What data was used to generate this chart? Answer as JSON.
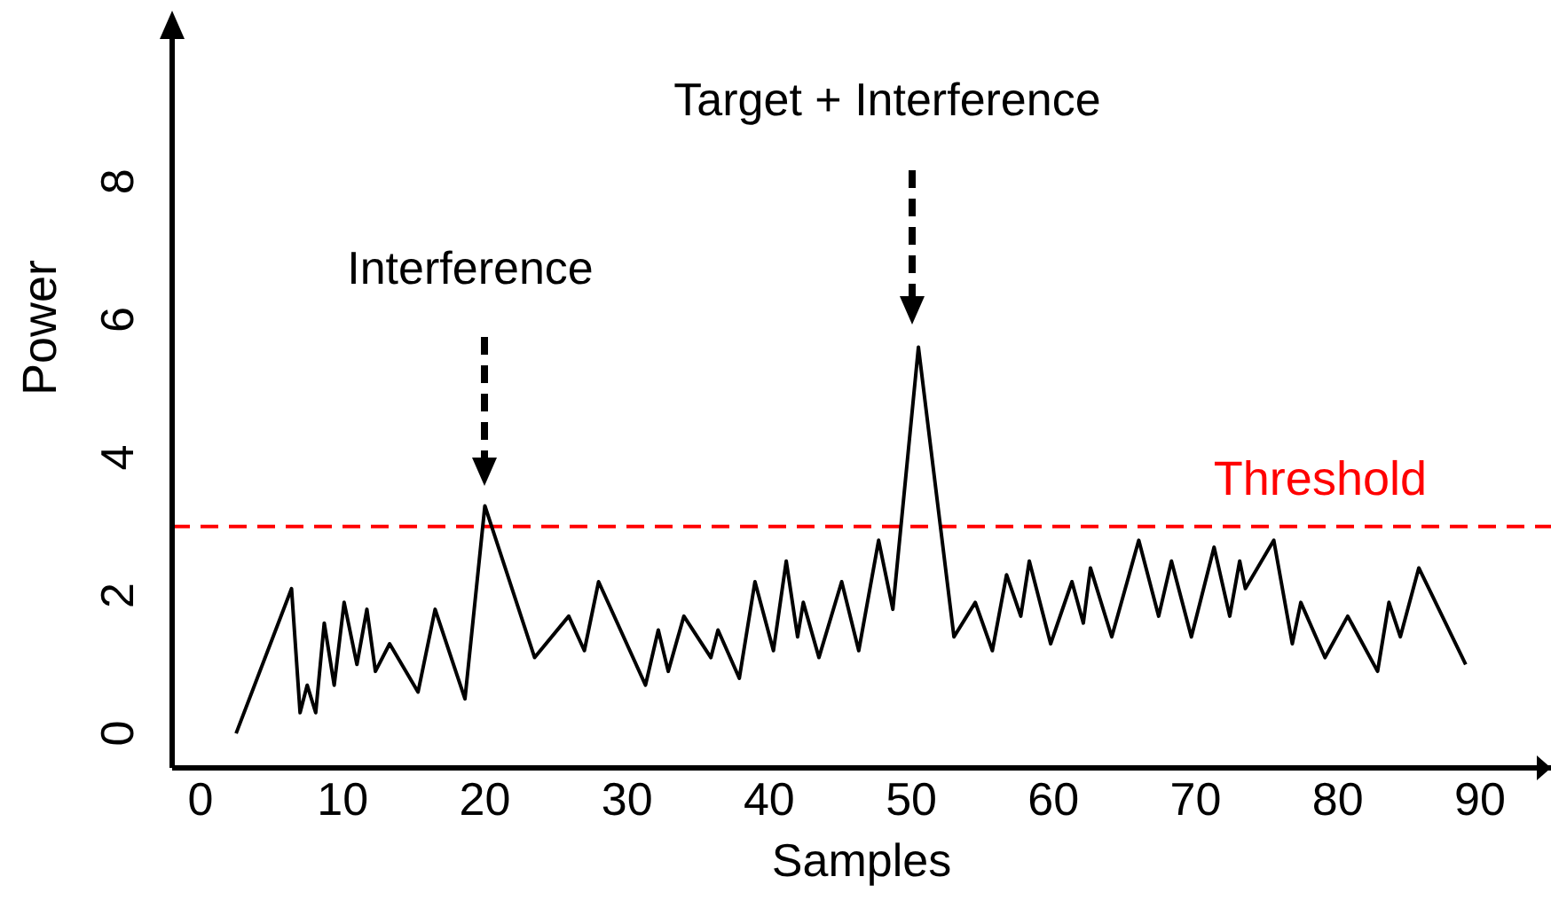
{
  "chart_data": {
    "type": "line",
    "xlabel": "Samples",
    "ylabel": "Power",
    "x": [
      2.5,
      6.4,
      7,
      7.5,
      8.1,
      8.7,
      9.4,
      10.1,
      11,
      11.7,
      12.3,
      13.3,
      15.3,
      16.5,
      18.6,
      20,
      23.5,
      25.9,
      27,
      28,
      31.3,
      32.2,
      32.9,
      34,
      35.9,
      36.4,
      37.9,
      39,
      40.3,
      41.2,
      42,
      42.4,
      43.5,
      45.1,
      46.3,
      47.7,
      48.7,
      50.5,
      53,
      54.5,
      55.7,
      56.7,
      57.7,
      58.3,
      59.8,
      61.3,
      62.1,
      62.6,
      64.1,
      66,
      67.4,
      68.3,
      69.7,
      71.3,
      72.4,
      73.1,
      73.5,
      75.5,
      76.8,
      77.4,
      79.1,
      80.7,
      82.8,
      83.6,
      84.4,
      85.7,
      89
    ],
    "series": [
      {
        "color": "#000000",
        "values": [
          0,
          2.1,
          0.3,
          0.7,
          0.3,
          1.6,
          0.7,
          1.9,
          1,
          1.8,
          0.9,
          1.3,
          0.6,
          1.8,
          0.5,
          3.3,
          1.1,
          1.7,
          1.2,
          2.2,
          0.7,
          1.5,
          0.9,
          1.7,
          1.1,
          1.5,
          0.8,
          2.2,
          1.2,
          2.5,
          1.4,
          1.9,
          1.1,
          2.2,
          1.2,
          2.8,
          1.8,
          5.6,
          1.4,
          1.9,
          1.2,
          2.3,
          1.7,
          2.5,
          1.3,
          2.2,
          1.6,
          2.4,
          1.4,
          2.8,
          1.7,
          2.5,
          1.4,
          2.7,
          1.7,
          2.5,
          2.1,
          2.8,
          1.3,
          1.9,
          1.1,
          1.7,
          0.9,
          1.9,
          1.4,
          2.4,
          1
        ]
      }
    ],
    "xlim": [
      -2,
      95
    ],
    "xticks": [
      0,
      10,
      20,
      30,
      40,
      50,
      60,
      70,
      80,
      90
    ],
    "ylim": [
      -0.5,
      10.3
    ],
    "yticks": [
      0,
      2,
      4,
      6,
      8
    ],
    "grid": false,
    "marker": "none",
    "line_style": "solid",
    "ref_lines": [
      {
        "axis": "y",
        "value": 3,
        "label": "Threshold",
        "color": "#ff0000",
        "line_style": "dashed"
      }
    ],
    "annotations": [
      "Interference",
      "Target + Interference"
    ]
  }
}
